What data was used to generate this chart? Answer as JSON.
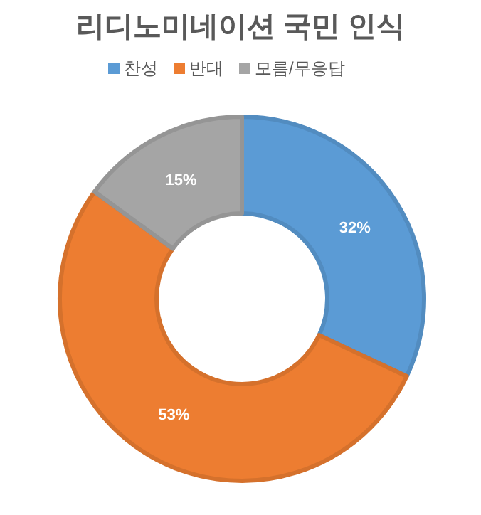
{
  "chart_data": {
    "type": "donut",
    "title": "리디노미네이션 국민 인식",
    "categories": [
      "찬성",
      "반대",
      "모름/무응답"
    ],
    "values": [
      32,
      53,
      15
    ],
    "value_labels": [
      "32%",
      "53%",
      "15%"
    ],
    "colors": [
      "#5b9bd5",
      "#ed7d31",
      "#a5a5a5"
    ],
    "legend": "top"
  }
}
